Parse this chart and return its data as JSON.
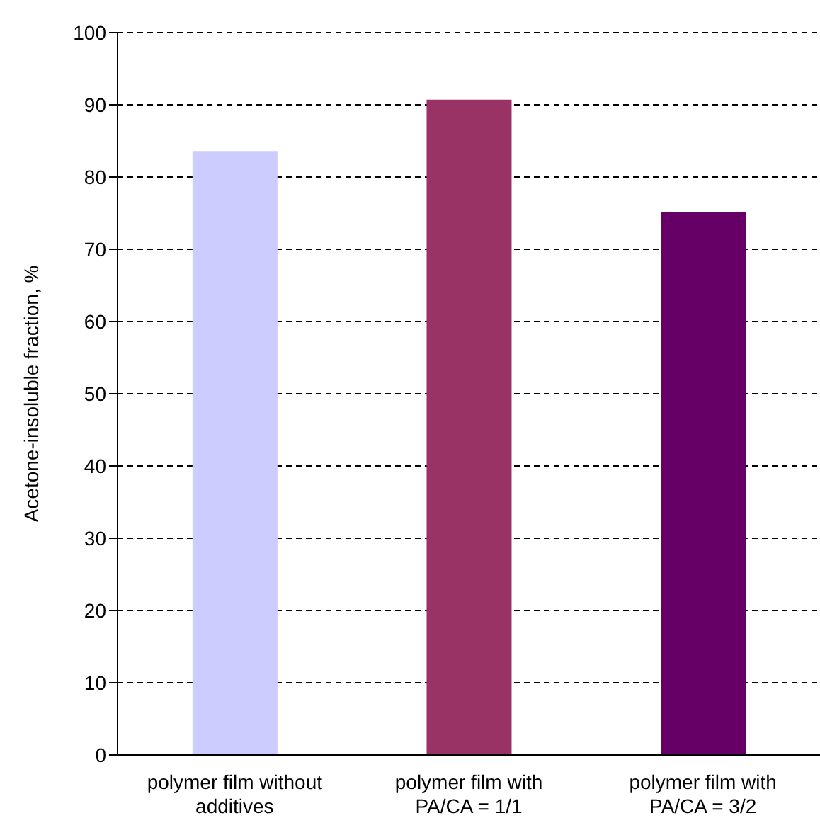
{
  "chart_data": {
    "type": "bar",
    "ylabel": "Acetone-insoluble fraction, %",
    "categories": [
      "polymer film without additives",
      "polymer film with PA/CA = 1/1",
      "polymer film with PA/CA = 3/2"
    ],
    "values": [
      83.6,
      90.7,
      75.1
    ],
    "colors": [
      "#ccccff",
      "#993366",
      "#660066"
    ],
    "ylim": [
      0,
      100
    ],
    "yticks": [
      0,
      10,
      20,
      30,
      40,
      50,
      60,
      70,
      80,
      90,
      100
    ],
    "grid": "y"
  }
}
